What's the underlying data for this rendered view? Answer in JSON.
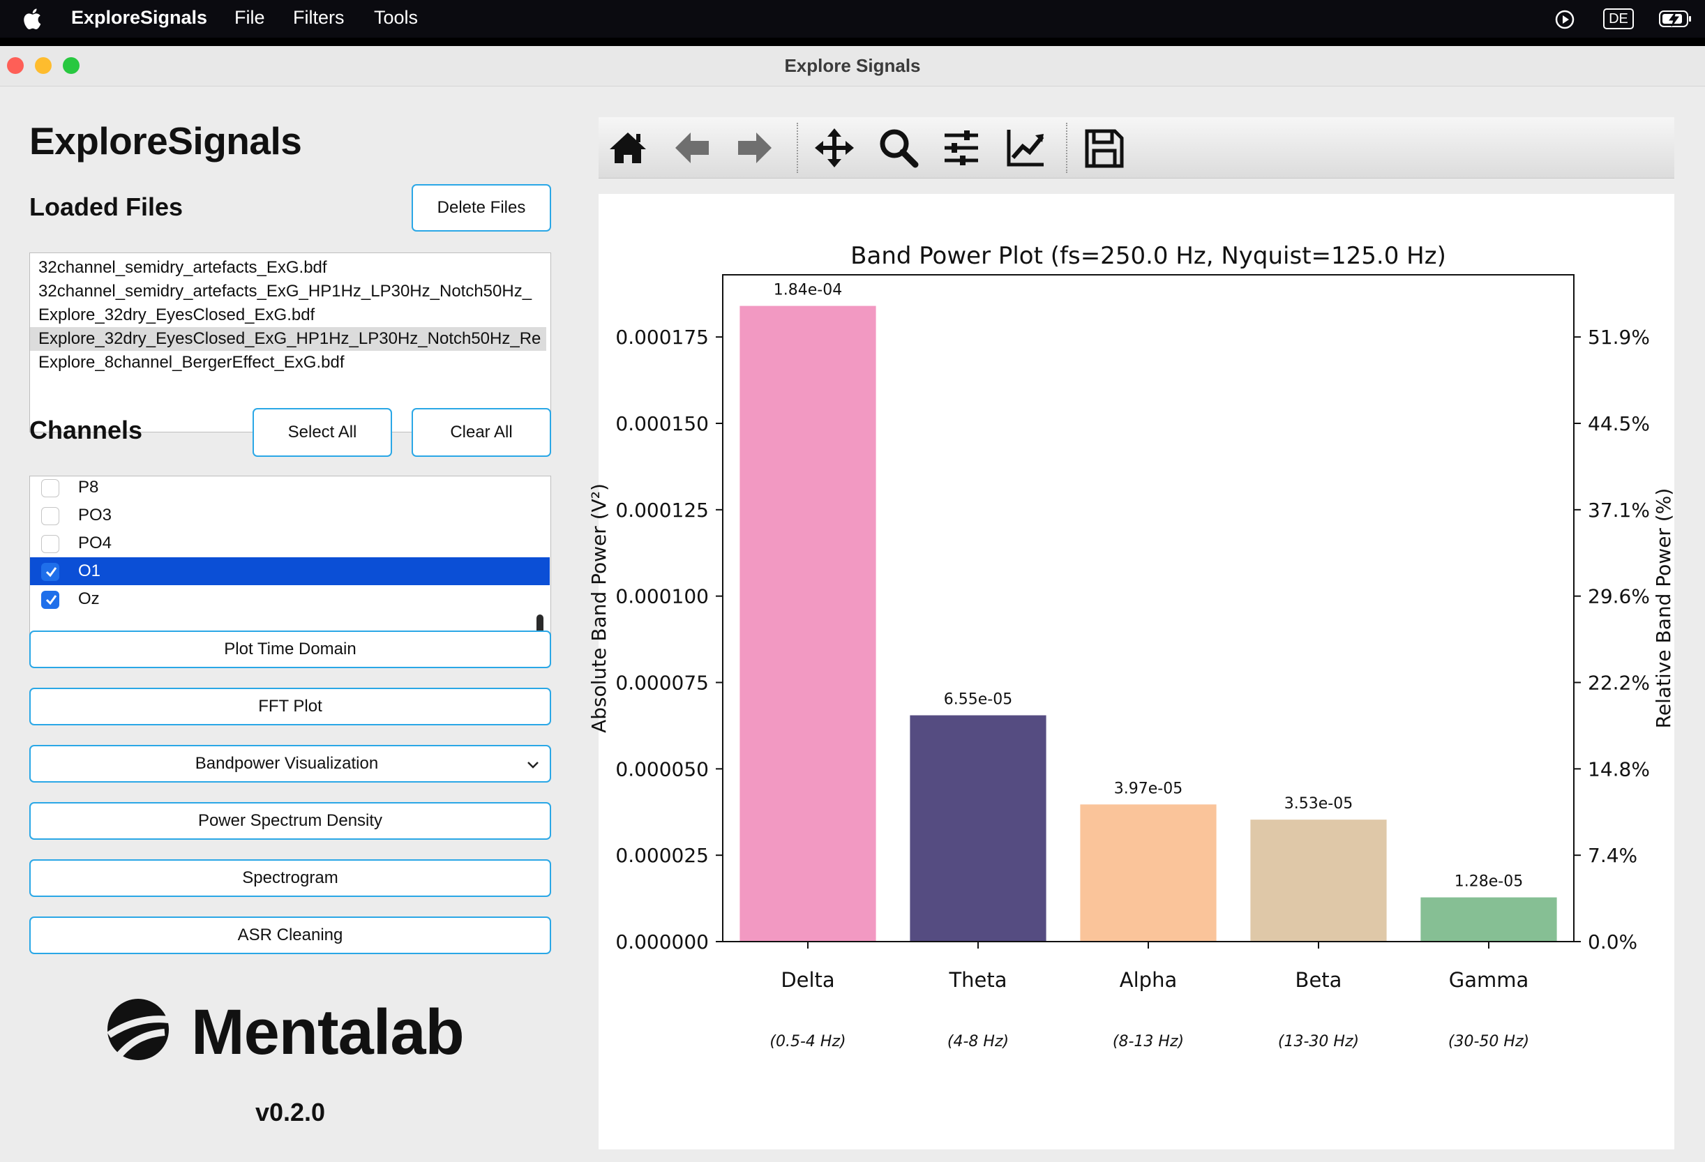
{
  "menubar": {
    "app_name": "ExploreSignals",
    "items": [
      "File",
      "Filters",
      "Tools"
    ],
    "keyboard_layout": "DE"
  },
  "window": {
    "title": "Explore Signals"
  },
  "sidebar": {
    "app_title": "ExploreSignals",
    "loaded_files_title": "Loaded Files",
    "delete_files_label": "Delete Files",
    "files": [
      "32channel_semidry_artefacts_ExG.bdf",
      "32channel_semidry_artefacts_ExG_HP1Hz_LP30Hz_Notch50Hz_",
      "Explore_32dry_EyesClosed_ExG.bdf",
      "Explore_32dry_EyesClosed_ExG_HP1Hz_LP30Hz_Notch50Hz_Re",
      "Explore_8channel_BergerEffect_ExG.bdf"
    ],
    "selected_file_index": 3,
    "channels_title": "Channels",
    "select_all_label": "Select All",
    "clear_all_label": "Clear All",
    "channels": [
      {
        "name": "P8",
        "checked": false,
        "selected": false
      },
      {
        "name": "PO3",
        "checked": false,
        "selected": false
      },
      {
        "name": "PO4",
        "checked": false,
        "selected": false
      },
      {
        "name": "O1",
        "checked": true,
        "selected": true
      },
      {
        "name": "Oz",
        "checked": true,
        "selected": false
      }
    ],
    "actions": {
      "plot_time_domain": "Plot Time Domain",
      "fft_plot": "FFT Plot",
      "bandpower_visualization": "Bandpower Visualization",
      "power_spectrum_density": "Power Spectrum Density",
      "spectrogram": "Spectrogram",
      "asr_cleaning": "ASR Cleaning"
    },
    "logo_text": "Mentalab",
    "version": "v0.2.0"
  },
  "toolbar": {
    "tools": [
      "home-icon",
      "back-arrow-icon",
      "forward-arrow-icon",
      "pan-icon",
      "zoom-icon",
      "configure-subplots-icon",
      "edit-axis-icon",
      "save-icon"
    ]
  },
  "colors": {
    "accent_border": "#2aa7e6",
    "selection_blue": "#0b4fd6",
    "delta": "#f299c2",
    "theta": "#554c81",
    "alpha": "#fac49a",
    "beta": "#dfc8a8",
    "gamma": "#86bf94"
  },
  "chart_data": {
    "type": "bar",
    "title": "Band Power Plot (fs=250.0 Hz, Nyquist=125.0 Hz)",
    "categories": [
      "Delta",
      "Theta",
      "Alpha",
      "Beta",
      "Gamma"
    ],
    "category_ranges": [
      "(0.5-4 Hz)",
      "(4-8 Hz)",
      "(8-13 Hz)",
      "(13-30 Hz)",
      "(30-50 Hz)"
    ],
    "values": [
      0.000184,
      6.55e-05,
      3.97e-05,
      3.53e-05,
      1.28e-05
    ],
    "value_labels": [
      "1.84e-04",
      "6.55e-05",
      "3.97e-05",
      "3.53e-05",
      "1.28e-05"
    ],
    "ylabel": "Absolute Band Power (V²)",
    "ylabel_right": "Relative Band Power (%)",
    "ylim": [
      0,
      0.000193
    ],
    "yticks": [
      0.0,
      2.5e-05,
      5e-05,
      7.5e-05,
      0.0001,
      0.000125,
      0.00015,
      0.000175
    ],
    "ytick_labels": [
      "0.000000",
      "0.000025",
      "0.000050",
      "0.000075",
      "0.000100",
      "0.000125",
      "0.000150",
      "0.000175"
    ],
    "ytick_labels_right": [
      "0.0%",
      "7.4%",
      "14.8%",
      "22.2%",
      "29.6%",
      "37.1%",
      "44.5%",
      "51.9%"
    ],
    "grid": false
  }
}
